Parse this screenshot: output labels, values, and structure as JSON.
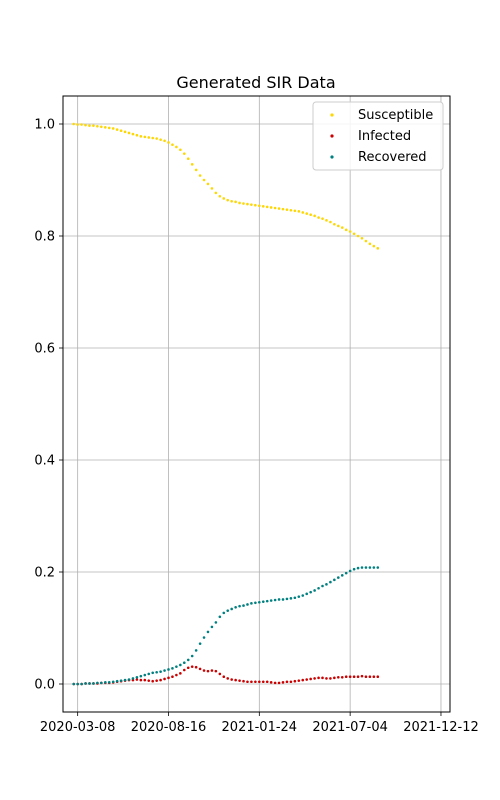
{
  "chart_data": {
    "type": "scatter",
    "title": "Generated SIR Data",
    "xlabel": "",
    "ylabel": "",
    "x_tick_labels": [
      "2020-03-08",
      "2020-08-16",
      "2021-01-24",
      "2021-07-04",
      "2021-12-12"
    ],
    "x_ticks": [
      "2020-03-08",
      "2020-08-16",
      "2021-01-24",
      "2021-07-04",
      "2021-12-12"
    ],
    "x_range": [
      "2020-02-11",
      "2021-12-28"
    ],
    "y_tick_labels": [
      "0.0",
      "0.2",
      "0.4",
      "0.6",
      "0.8",
      "1.0"
    ],
    "y_ticks": [
      0.0,
      0.2,
      0.4,
      0.6,
      0.8,
      1.0
    ],
    "ylim": [
      -0.05,
      1.05
    ],
    "grid": true,
    "legend_position": "top-right",
    "date_start": "2020-03-01",
    "date_step_days": 7,
    "series": [
      {
        "name": "Susceptible",
        "color": "#ffd700",
        "values": [
          1.0,
          0.999,
          0.999,
          0.998,
          0.997,
          0.997,
          0.996,
          0.995,
          0.994,
          0.993,
          0.992,
          0.99,
          0.988,
          0.986,
          0.984,
          0.982,
          0.98,
          0.978,
          0.977,
          0.976,
          0.975,
          0.974,
          0.972,
          0.97,
          0.967,
          0.963,
          0.959,
          0.954,
          0.947,
          0.938,
          0.928,
          0.918,
          0.908,
          0.9,
          0.893,
          0.885,
          0.877,
          0.871,
          0.867,
          0.864,
          0.862,
          0.861,
          0.859,
          0.858,
          0.857,
          0.856,
          0.855,
          0.854,
          0.853,
          0.852,
          0.851,
          0.85,
          0.849,
          0.848,
          0.847,
          0.846,
          0.845,
          0.844,
          0.842,
          0.84,
          0.838,
          0.836,
          0.833,
          0.831,
          0.828,
          0.825,
          0.821,
          0.818,
          0.815,
          0.811,
          0.808,
          0.804,
          0.8,
          0.796,
          0.791,
          0.786,
          0.782,
          0.778
        ]
      },
      {
        "name": "Infected",
        "color": "#cc0000",
        "values": [
          0.0,
          0.0,
          0.0,
          0.001,
          0.001,
          0.001,
          0.001,
          0.002,
          0.002,
          0.002,
          0.003,
          0.004,
          0.005,
          0.006,
          0.007,
          0.007,
          0.008,
          0.007,
          0.007,
          0.006,
          0.005,
          0.006,
          0.007,
          0.009,
          0.011,
          0.013,
          0.016,
          0.019,
          0.025,
          0.029,
          0.031,
          0.03,
          0.027,
          0.024,
          0.023,
          0.024,
          0.023,
          0.018,
          0.013,
          0.01,
          0.008,
          0.007,
          0.006,
          0.005,
          0.004,
          0.004,
          0.004,
          0.004,
          0.004,
          0.004,
          0.003,
          0.002,
          0.002,
          0.003,
          0.004,
          0.004,
          0.005,
          0.006,
          0.007,
          0.008,
          0.009,
          0.01,
          0.011,
          0.011,
          0.01,
          0.01,
          0.011,
          0.012,
          0.012,
          0.013,
          0.013,
          0.013,
          0.013,
          0.014,
          0.013,
          0.013,
          0.013,
          0.013
        ]
      },
      {
        "name": "Recovered",
        "color": "#008080",
        "values": [
          0.0,
          0.0,
          0.0,
          0.001,
          0.001,
          0.001,
          0.002,
          0.002,
          0.003,
          0.003,
          0.004,
          0.005,
          0.006,
          0.007,
          0.008,
          0.01,
          0.012,
          0.014,
          0.016,
          0.018,
          0.02,
          0.021,
          0.022,
          0.024,
          0.026,
          0.028,
          0.031,
          0.034,
          0.038,
          0.043,
          0.05,
          0.06,
          0.072,
          0.083,
          0.093,
          0.102,
          0.11,
          0.12,
          0.127,
          0.131,
          0.134,
          0.137,
          0.139,
          0.14,
          0.142,
          0.144,
          0.145,
          0.146,
          0.147,
          0.148,
          0.149,
          0.15,
          0.151,
          0.151,
          0.152,
          0.153,
          0.154,
          0.156,
          0.158,
          0.161,
          0.164,
          0.167,
          0.171,
          0.175,
          0.178,
          0.182,
          0.186,
          0.19,
          0.194,
          0.198,
          0.202,
          0.205,
          0.207,
          0.208,
          0.208,
          0.208,
          0.208,
          0.208
        ]
      }
    ]
  }
}
